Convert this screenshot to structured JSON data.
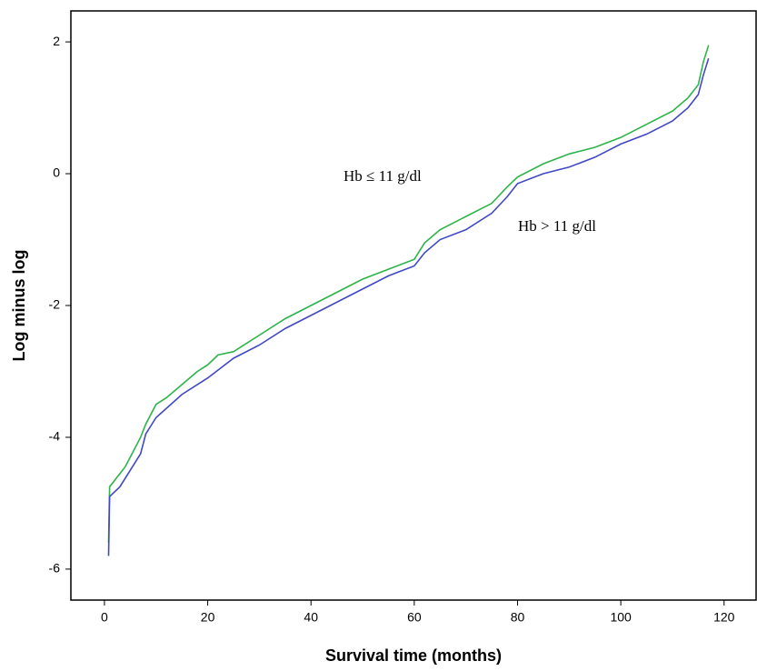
{
  "chart_data": {
    "type": "line",
    "x_label": "Survival time (months)",
    "y_label": "Log minus log",
    "annotations": [
      "Hb ≤ 11 g/dl",
      "Hb > 11 g/dl"
    ],
    "xlim": [
      -6.5,
      126.2
    ],
    "ylim": [
      -6.47,
      2.47
    ],
    "xticks": [
      0,
      20,
      40,
      60,
      80,
      100,
      120
    ],
    "yticks": [
      -6,
      -4,
      -2,
      0,
      2
    ],
    "series": [
      {
        "name": "Hb ≤ 11 g/dl",
        "color": "#2db34a",
        "x": [
          0.8,
          1,
          2,
          3,
          4,
          5,
          6,
          7,
          8,
          10,
          12,
          15,
          18,
          20,
          22,
          25,
          30,
          35,
          40,
          45,
          50,
          55,
          60,
          62,
          65,
          70,
          75,
          78,
          80,
          85,
          90,
          95,
          100,
          105,
          110,
          113,
          115,
          116,
          117
        ],
        "values": [
          -5.6,
          -4.75,
          -4.65,
          -4.55,
          -4.45,
          -4.3,
          -4.15,
          -4.0,
          -3.8,
          -3.5,
          -3.4,
          -3.2,
          -3.0,
          -2.9,
          -2.75,
          -2.7,
          -2.45,
          -2.2,
          -2.0,
          -1.8,
          -1.6,
          -1.45,
          -1.3,
          -1.05,
          -0.85,
          -0.65,
          -0.45,
          -0.2,
          -0.05,
          0.15,
          0.3,
          0.4,
          0.55,
          0.75,
          0.95,
          1.15,
          1.35,
          1.7,
          1.95
        ]
      },
      {
        "name": "Hb > 11 g/dl",
        "color": "#4048c4",
        "x": [
          0.8,
          1,
          3,
          5,
          7,
          8,
          10,
          15,
          20,
          25,
          30,
          35,
          40,
          45,
          50,
          55,
          60,
          62,
          65,
          70,
          75,
          78,
          80,
          85,
          90,
          95,
          100,
          105,
          110,
          113,
          115,
          116,
          117
        ],
        "values": [
          -5.8,
          -4.9,
          -4.75,
          -4.5,
          -4.25,
          -3.95,
          -3.7,
          -3.35,
          -3.1,
          -2.8,
          -2.6,
          -2.35,
          -2.15,
          -1.95,
          -1.75,
          -1.55,
          -1.4,
          -1.2,
          -1.0,
          -0.85,
          -0.6,
          -0.35,
          -0.15,
          0.0,
          0.1,
          0.25,
          0.45,
          0.6,
          0.8,
          1.0,
          1.2,
          1.5,
          1.75
        ]
      }
    ]
  }
}
